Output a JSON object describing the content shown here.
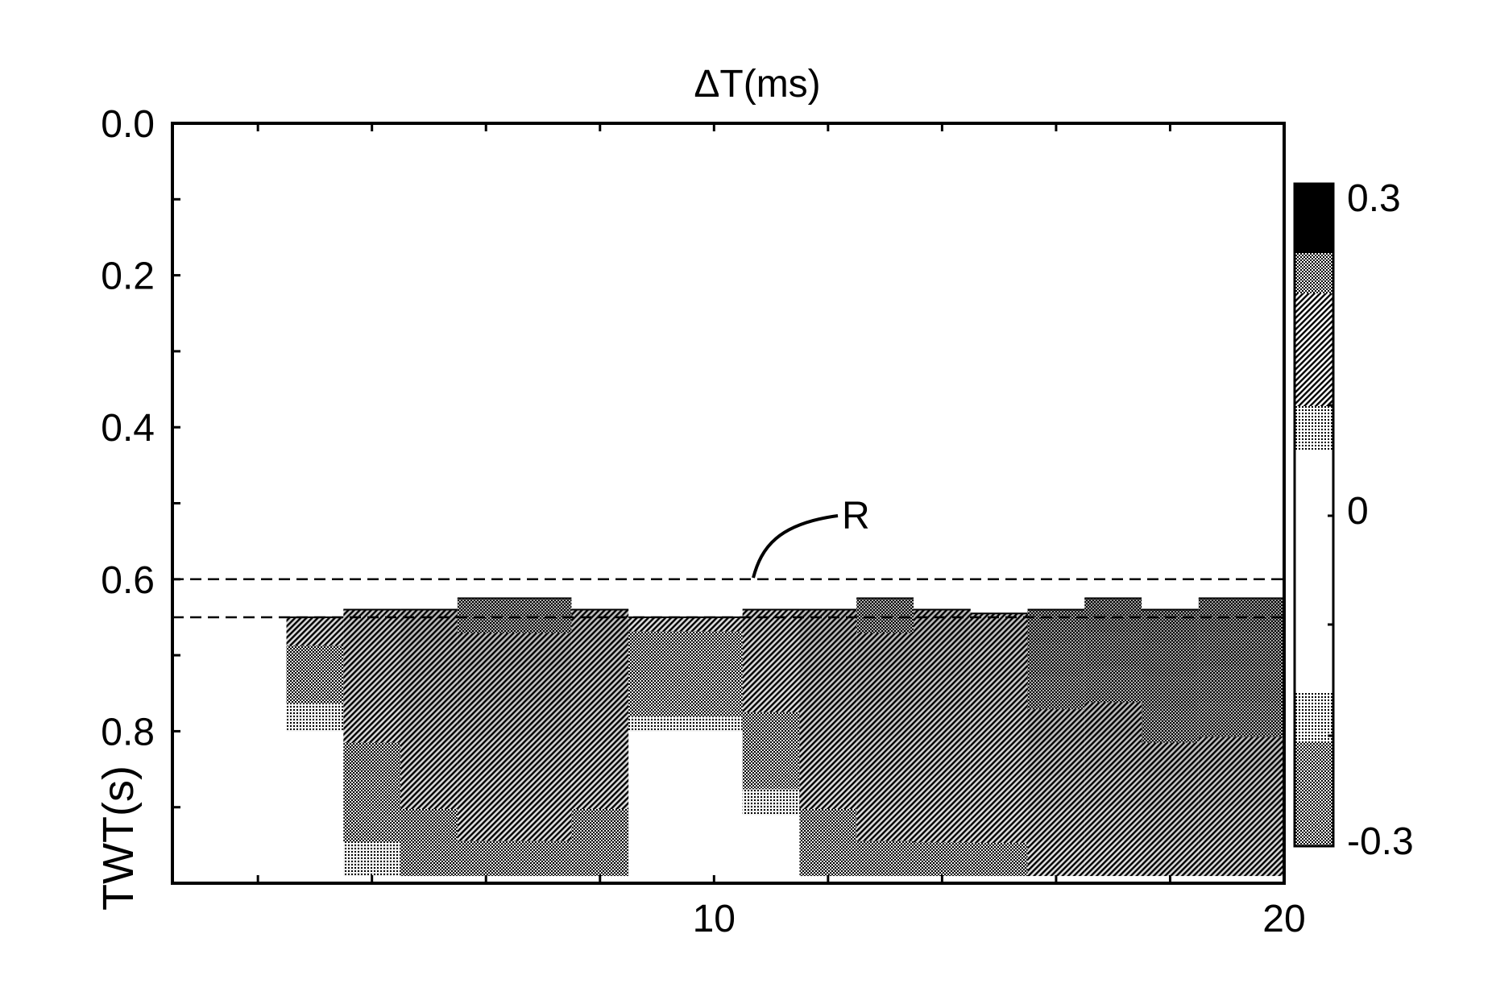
{
  "chart_data": {
    "type": "heatmap",
    "title": "ΔT(ms)",
    "xlabel": "",
    "ylabel": "TWT(s)",
    "xlim": [
      0.5,
      20
    ],
    "ylim": [
      0,
      1.0
    ],
    "y_inverted": true,
    "x_tick_labels": [
      "10",
      "20"
    ],
    "x_tick_values": [
      10,
      20
    ],
    "y_tick_labels": [
      "0.0",
      "0.2",
      "0.4",
      "0.6",
      "0.8"
    ],
    "y_tick_values": [
      0.0,
      0.2,
      0.4,
      0.6,
      0.8
    ],
    "colorbar": {
      "min_label": "-0.3",
      "mid_label": "0",
      "max_label": "0.3",
      "range": [
        -0.3,
        0.3
      ]
    },
    "annotation": {
      "text": "R",
      "target_y": 0.6
    },
    "reference_lines_y": [
      0.6,
      0.65
    ],
    "columns": [
      {
        "x0": 2.5,
        "x1": 3.5,
        "top": 0.65,
        "bottom": 0.8,
        "top_value": -0.12,
        "bottom_value": -0.02
      },
      {
        "x0": 3.5,
        "x1": 4.5,
        "top": 0.64,
        "bottom": 0.99,
        "top_value": -0.16,
        "bottom_value": -0.03
      },
      {
        "x0": 4.5,
        "x1": 5.5,
        "top": 0.64,
        "bottom": 0.99,
        "top_value": -0.2,
        "bottom_value": -0.06
      },
      {
        "x0": 5.5,
        "x1": 7.5,
        "top": 0.625,
        "bottom": 0.99,
        "top_value": -0.22,
        "bottom_value": -0.06
      },
      {
        "x0": 7.5,
        "x1": 8.5,
        "top": 0.64,
        "bottom": 0.99,
        "top_value": -0.18,
        "bottom_value": -0.06
      },
      {
        "x0": 8.5,
        "x1": 10.5,
        "top": 0.65,
        "bottom": 0.8,
        "top_value": -0.1,
        "bottom_value": -0.03
      },
      {
        "x0": 10.5,
        "x1": 11.5,
        "top": 0.64,
        "bottom": 0.91,
        "top_value": -0.14,
        "bottom_value": -0.03
      },
      {
        "x0": 11.5,
        "x1": 12.5,
        "top": 0.64,
        "bottom": 0.99,
        "top_value": -0.2,
        "bottom_value": -0.05
      },
      {
        "x0": 12.5,
        "x1": 13.5,
        "top": 0.625,
        "bottom": 0.99,
        "top_value": -0.22,
        "bottom_value": -0.07
      },
      {
        "x0": 13.5,
        "x1": 14.5,
        "top": 0.64,
        "bottom": 0.99,
        "top_value": -0.2,
        "bottom_value": -0.07
      },
      {
        "x0": 14.5,
        "x1": 15.5,
        "top": 0.645,
        "bottom": 0.99,
        "top_value": -0.18,
        "bottom_value": -0.07
      },
      {
        "x0": 15.5,
        "x1": 16.5,
        "top": 0.64,
        "bottom": 0.99,
        "top_value": -0.26,
        "bottom_value": -0.08
      },
      {
        "x0": 16.5,
        "x1": 17.5,
        "top": 0.625,
        "bottom": 0.99,
        "top_value": -0.28,
        "bottom_value": -0.08
      },
      {
        "x0": 17.5,
        "x1": 18.5,
        "top": 0.64,
        "bottom": 0.99,
        "top_value": -0.28,
        "bottom_value": -0.1
      },
      {
        "x0": 18.5,
        "x1": 20,
        "top": 0.625,
        "bottom": 0.99,
        "top_value": -0.28,
        "bottom_value": -0.1
      }
    ]
  }
}
